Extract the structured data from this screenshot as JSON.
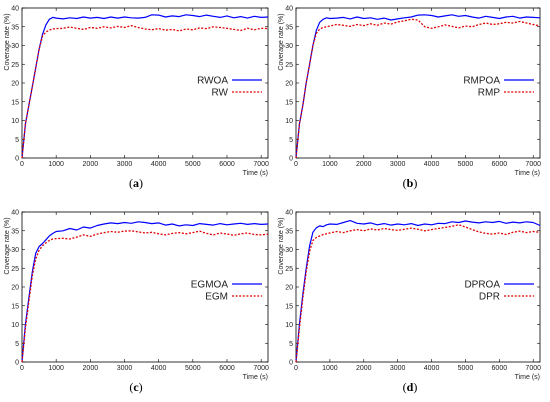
{
  "chart_data": [
    {
      "type": "line",
      "caption_letter": "a",
      "xlabel": "Time (s)",
      "ylabel": "Coverage rate (%)",
      "xlim": [
        0,
        7200
      ],
      "ylim": [
        0,
        40
      ],
      "xticks": [
        0,
        1000,
        2000,
        3000,
        4000,
        5000,
        6000,
        7000
      ],
      "yticks": [
        0,
        5,
        10,
        15,
        20,
        25,
        30,
        35,
        40
      ],
      "legend_position": "right-middle",
      "series": [
        {
          "name": "RWOA",
          "color": "#0000ff",
          "style": "solid",
          "x": [
            0,
            100,
            200,
            300,
            400,
            500,
            600,
            700,
            800,
            900,
            1000,
            1200,
            1400,
            1600,
            1800,
            2000,
            2200,
            2400,
            2600,
            2800,
            3000,
            3200,
            3400,
            3600,
            3800,
            4000,
            4200,
            4400,
            4600,
            4800,
            5000,
            5200,
            5400,
            5600,
            5800,
            6000,
            6200,
            6400,
            6600,
            6800,
            7000,
            7200
          ],
          "y": [
            0,
            9,
            14,
            19,
            24,
            29,
            33,
            35.5,
            37,
            37.5,
            37.3,
            37.1,
            37.4,
            37.2,
            37.6,
            37.3,
            37.5,
            37.2,
            37.6,
            37.3,
            37.6,
            37.4,
            37.3,
            37.5,
            38.2,
            38.1,
            37.6,
            37.9,
            37.7,
            38.2,
            38.0,
            37.7,
            38.1,
            37.8,
            37.5,
            37.9,
            37.4,
            37.7,
            37.3,
            37.8,
            37.5,
            37.6
          ]
        },
        {
          "name": "RW",
          "color": "#e00000",
          "style": "dotted",
          "x": [
            0,
            100,
            200,
            300,
            400,
            500,
            600,
            700,
            800,
            900,
            1000,
            1200,
            1400,
            1600,
            1800,
            2000,
            2200,
            2400,
            2600,
            2800,
            3000,
            3200,
            3400,
            3600,
            3800,
            4000,
            4200,
            4400,
            4600,
            4800,
            5000,
            5200,
            5400,
            5600,
            5800,
            6000,
            6200,
            6400,
            6600,
            6800,
            7000,
            7200
          ],
          "y": [
            0,
            9,
            14,
            19,
            24,
            29,
            32.5,
            33.6,
            34.1,
            34.4,
            34.5,
            34.6,
            34.9,
            34.6,
            34.3,
            34.8,
            34.6,
            35.0,
            34.7,
            35.1,
            34.8,
            35.3,
            34.8,
            34.4,
            34.2,
            34.5,
            34.1,
            34.3,
            33.9,
            34.4,
            34.2,
            34.7,
            34.5,
            35.0,
            34.8,
            34.6,
            34.3,
            34.0,
            34.6,
            34.2,
            34.6,
            34.5
          ]
        }
      ]
    },
    {
      "type": "line",
      "caption_letter": "b",
      "xlabel": "Time (s)",
      "ylabel": "Coverage rate (%)",
      "xlim": [
        0,
        7200
      ],
      "ylim": [
        0,
        40
      ],
      "xticks": [
        0,
        1000,
        2000,
        3000,
        4000,
        5000,
        6000,
        7000
      ],
      "yticks": [
        0,
        5,
        10,
        15,
        20,
        25,
        30,
        35,
        40
      ],
      "legend_position": "right-middle",
      "series": [
        {
          "name": "RMPOA",
          "color": "#0000ff",
          "style": "solid",
          "x": [
            0,
            100,
            200,
            300,
            400,
            500,
            600,
            700,
            800,
            900,
            1000,
            1200,
            1400,
            1600,
            1800,
            2000,
            2200,
            2400,
            2600,
            2800,
            3000,
            3200,
            3400,
            3600,
            3800,
            4000,
            4200,
            4400,
            4600,
            4800,
            5000,
            5200,
            5400,
            5600,
            5800,
            6000,
            6200,
            6400,
            6600,
            6800,
            7000,
            7200
          ],
          "y": [
            0,
            9,
            14,
            20,
            25,
            30,
            34,
            36.2,
            37.0,
            37.4,
            37.2,
            37.3,
            37.5,
            37.1,
            37.6,
            37.2,
            37.4,
            37.0,
            37.3,
            36.8,
            37.1,
            37.4,
            37.6,
            38.1,
            38.2,
            38.0,
            37.6,
            37.9,
            38.2,
            37.8,
            38.0,
            37.6,
            37.3,
            37.8,
            37.5,
            37.2,
            37.6,
            37.8,
            37.3,
            37.6,
            37.5,
            37.4
          ]
        },
        {
          "name": "RMP",
          "color": "#e00000",
          "style": "dotted",
          "x": [
            0,
            100,
            200,
            300,
            400,
            500,
            600,
            700,
            800,
            900,
            1000,
            1200,
            1400,
            1600,
            1800,
            2000,
            2200,
            2400,
            2600,
            2800,
            3000,
            3200,
            3400,
            3600,
            3800,
            4000,
            4200,
            4400,
            4600,
            4800,
            5000,
            5200,
            5400,
            5600,
            5800,
            6000,
            6200,
            6400,
            6600,
            6800,
            7000,
            7200
          ],
          "y": [
            0,
            9,
            14,
            20,
            25,
            30,
            33.2,
            34.4,
            34.8,
            35.0,
            35.2,
            35.6,
            35.4,
            35.1,
            35.6,
            35.3,
            35.8,
            35.4,
            36.0,
            35.7,
            36.3,
            36.6,
            37.0,
            36.8,
            35.0,
            34.6,
            35.0,
            35.5,
            35.1,
            34.7,
            35.2,
            35.0,
            35.6,
            36.0,
            35.6,
            35.8,
            36.2,
            36.0,
            36.4,
            36.0,
            35.6,
            35.2
          ]
        }
      ]
    },
    {
      "type": "line",
      "caption_letter": "c",
      "xlabel": "Time (s)",
      "ylabel": "Coverage rate (%)",
      "xlim": [
        0,
        7200
      ],
      "ylim": [
        0,
        40
      ],
      "xticks": [
        0,
        1000,
        2000,
        3000,
        4000,
        5000,
        6000,
        7000
      ],
      "yticks": [
        0,
        5,
        10,
        15,
        20,
        25,
        30,
        35,
        40
      ],
      "legend_position": "right-middle",
      "series": [
        {
          "name": "EGMOA",
          "color": "#0000ff",
          "style": "solid",
          "x": [
            0,
            100,
            200,
            300,
            400,
            500,
            600,
            700,
            800,
            900,
            1000,
            1200,
            1400,
            1600,
            1800,
            2000,
            2200,
            2400,
            2600,
            2800,
            3000,
            3200,
            3400,
            3600,
            3800,
            4000,
            4200,
            4400,
            4600,
            4800,
            5000,
            5200,
            5400,
            5600,
            5800,
            6000,
            6200,
            6400,
            6600,
            6800,
            7000,
            7200
          ],
          "y": [
            0,
            10,
            17,
            24,
            29,
            30.8,
            31.6,
            32.6,
            33.6,
            34.3,
            34.8,
            35.0,
            35.6,
            35.2,
            36.0,
            35.7,
            36.4,
            36.8,
            37.1,
            36.9,
            37.2,
            37.0,
            37.4,
            37.2,
            36.9,
            37.1,
            36.5,
            36.8,
            36.3,
            36.6,
            36.4,
            36.9,
            36.7,
            36.5,
            36.9,
            36.6,
            36.8,
            37.0,
            36.7,
            36.9,
            36.7,
            36.8
          ]
        },
        {
          "name": "EGM",
          "color": "#e00000",
          "style": "dotted",
          "x": [
            0,
            100,
            200,
            300,
            400,
            500,
            600,
            700,
            800,
            900,
            1000,
            1200,
            1400,
            1600,
            1800,
            2000,
            2200,
            2400,
            2600,
            2800,
            3000,
            3200,
            3400,
            3600,
            3800,
            4000,
            4200,
            4400,
            4600,
            4800,
            5000,
            5200,
            5400,
            5600,
            5800,
            6000,
            6200,
            6400,
            6600,
            6800,
            7000,
            7200
          ],
          "y": [
            0,
            9,
            16,
            23,
            27.5,
            29.8,
            31.0,
            31.8,
            32.4,
            32.8,
            32.9,
            33.0,
            32.8,
            33.3,
            33.9,
            33.5,
            34.1,
            34.5,
            34.8,
            34.6,
            34.9,
            35.0,
            34.7,
            34.4,
            34.6,
            34.2,
            33.9,
            34.3,
            34.5,
            34.2,
            34.5,
            34.9,
            34.3,
            33.9,
            34.4,
            34.1,
            33.8,
            34.2,
            34.4,
            34.0,
            33.9,
            34.1
          ]
        }
      ]
    },
    {
      "type": "line",
      "caption_letter": "d",
      "xlabel": "Time (s)",
      "ylabel": "Coverage rate (%)",
      "xlim": [
        0,
        7200
      ],
      "ylim": [
        0,
        40
      ],
      "xticks": [
        0,
        1000,
        2000,
        3000,
        4000,
        5000,
        6000,
        7000
      ],
      "yticks": [
        0,
        5,
        10,
        15,
        20,
        25,
        30,
        35,
        40
      ],
      "legend_position": "right-middle",
      "series": [
        {
          "name": "DPROA",
          "color": "#0000ff",
          "style": "solid",
          "x": [
            0,
            100,
            200,
            300,
            400,
            500,
            600,
            700,
            800,
            900,
            1000,
            1200,
            1400,
            1600,
            1800,
            2000,
            2200,
            2400,
            2600,
            2800,
            3000,
            3200,
            3400,
            3600,
            3800,
            4000,
            4200,
            4400,
            4600,
            4800,
            5000,
            5200,
            5400,
            5600,
            5800,
            6000,
            6200,
            6400,
            6600,
            6800,
            7000,
            7200
          ],
          "y": [
            0,
            10,
            18,
            25,
            31,
            34.6,
            35.8,
            36.3,
            36.1,
            36.6,
            36.8,
            36.7,
            37.2,
            37.7,
            37.0,
            36.8,
            37.1,
            36.6,
            36.9,
            36.5,
            36.8,
            36.6,
            36.9,
            36.4,
            36.8,
            36.6,
            37.0,
            36.9,
            37.4,
            37.2,
            37.6,
            37.3,
            37.1,
            37.4,
            37.2,
            37.5,
            37.0,
            37.3,
            37.1,
            37.4,
            37.2,
            36.4
          ]
        },
        {
          "name": "DPR",
          "color": "#e00000",
          "style": "dotted",
          "x": [
            0,
            100,
            200,
            300,
            400,
            500,
            600,
            700,
            800,
            900,
            1000,
            1200,
            1400,
            1600,
            1800,
            2000,
            2200,
            2400,
            2600,
            2800,
            3000,
            3200,
            3400,
            3600,
            3800,
            4000,
            4200,
            4400,
            4600,
            4800,
            5000,
            5200,
            5400,
            5600,
            5800,
            6000,
            6200,
            6400,
            6600,
            6800,
            7000,
            7200
          ],
          "y": [
            0,
            9,
            17,
            24,
            29.5,
            32.4,
            33.2,
            33.6,
            34.0,
            34.2,
            34.4,
            34.8,
            34.5,
            35.0,
            35.3,
            35.0,
            35.5,
            35.2,
            35.6,
            35.3,
            35.1,
            35.4,
            35.7,
            35.4,
            35.0,
            35.3,
            35.6,
            35.9,
            36.2,
            36.6,
            36.0,
            35.3,
            34.7,
            34.3,
            34.1,
            34.4,
            34.0,
            34.6,
            34.9,
            34.5,
            34.8,
            34.6
          ]
        }
      ]
    }
  ]
}
